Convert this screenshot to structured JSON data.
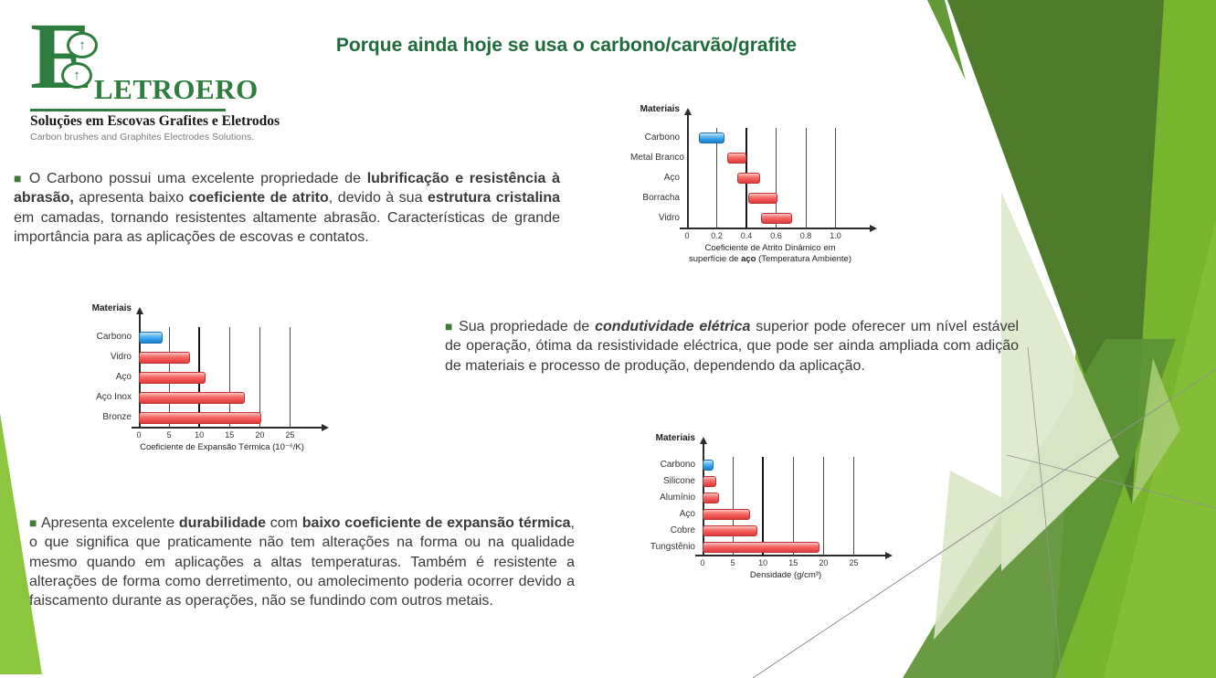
{
  "slide": {
    "title": "Porque ainda hoje se usa o carbono/carvão/grafite",
    "bullet": "■",
    "logo": {
      "brand_initial": "E",
      "brand_rest": "LETROERO",
      "arrow_glyph": "↑",
      "tagline_pt": "Soluções em Escovas Grafites e Eletrodos",
      "tagline_en": "Carbon brushes and Graphites Electrodes Solutions."
    },
    "paragraphs": [
      {
        "runs": [
          {
            "text": "O Carbono possui uma excelente propriedade de "
          },
          {
            "text": "lubrificação e resistência à abrasão,",
            "bold": true
          },
          {
            "text": " apresenta baixo "
          },
          {
            "text": "coeficiente de atrito",
            "bold": true
          },
          {
            "text": ", devido à sua "
          },
          {
            "text": "estrutura cristalina",
            "bold": true
          },
          {
            "text": " em camadas, tornando resistentes altamente abrasão. Características de grande importância para as aplicações de escovas e contatos."
          }
        ]
      },
      {
        "runs": [
          {
            "text": "Sua propriedade de "
          },
          {
            "text": "condutividade elétrica",
            "bold": true,
            "italic": true
          },
          {
            "text": " superior pode oferecer um nível estável de operação, ótima da resistividade eléctrica, que pode ser ainda ampliada com adição de materiais e processo de produção, dependendo da aplicação."
          }
        ]
      },
      {
        "runs": [
          {
            "text": "Apresenta excelente "
          },
          {
            "text": "durabilidade",
            "bold": true
          },
          {
            "text": " com "
          },
          {
            "text": "baixo coeficiente de expansão térmica",
            "bold": true
          },
          {
            "text": ", o que significa que praticamente não tem alterações na forma ou na qualidade mesmo quando em aplicações a altas temperaturas. Também é resistente a alterações de forma como derretimento, ou amolecimento poderia ocorrer devido a faiscamento durante as operações, não se fundindo com outros metais."
          }
        ]
      }
    ]
  },
  "chart_data": [
    {
      "type": "bar",
      "orientation": "horizontal",
      "y_axis_title": "Materiais",
      "categories": [
        "Carbono",
        "Metal Branco",
        "Aço",
        "Borracha",
        "Vidro"
      ],
      "bars": [
        {
          "label": "Carbono",
          "start": 0.08,
          "end": 0.25,
          "color": "blue"
        },
        {
          "label": "Metal Branco",
          "start": 0.27,
          "end": 0.4,
          "color": "red"
        },
        {
          "label": "Aço",
          "start": 0.34,
          "end": 0.49,
          "color": "red"
        },
        {
          "label": "Borracha",
          "start": 0.41,
          "end": 0.61,
          "color": "red"
        },
        {
          "label": "Vidro",
          "start": 0.5,
          "end": 0.71,
          "color": "red"
        }
      ],
      "xlim": [
        0,
        1.12
      ],
      "ticks": [
        0,
        0.2,
        0.4,
        0.6,
        0.8,
        1.0
      ],
      "tick_labels": [
        "0",
        "0.2",
        "0.4",
        "0.6",
        "0.8",
        "1.0"
      ],
      "strong_gridline": 0.4,
      "grid": "vertical",
      "xlabel_lines": [
        [
          {
            "text": "Coeficiente de Atrito Dinâmico em"
          }
        ],
        [
          {
            "text": "superfície de "
          },
          {
            "text": "aço",
            "bold": true
          },
          {
            "text": " (Temperatura Ambiente)"
          }
        ]
      ]
    },
    {
      "type": "bar",
      "orientation": "horizontal",
      "y_axis_title": "Materiais",
      "categories": [
        "Carbono",
        "Vidro",
        "Aço",
        "Aço Inox",
        "Bronze"
      ],
      "bars": [
        {
          "label": "Carbono",
          "start": 0,
          "end": 4.0,
          "color": "blue"
        },
        {
          "label": "Vidro",
          "start": 0,
          "end": 8.5,
          "color": "red"
        },
        {
          "label": "Aço",
          "start": 0,
          "end": 11.0,
          "color": "red"
        },
        {
          "label": "Aço Inox",
          "start": 0,
          "end": 17.5,
          "color": "red"
        },
        {
          "label": "Bronze",
          "start": 0,
          "end": 20.3,
          "color": "red"
        }
      ],
      "xlim": [
        0,
        27.5
      ],
      "ticks": [
        0,
        5,
        10,
        15,
        20,
        25
      ],
      "tick_labels": [
        "0",
        "5",
        "10",
        "15",
        "20",
        "25"
      ],
      "strong_gridline": 10,
      "grid": "vertical",
      "xlabel_lines": [
        [
          {
            "text": "Coeficiente de Expansão Térmica (10⁻⁶/K)"
          }
        ]
      ]
    },
    {
      "type": "bar",
      "orientation": "horizontal",
      "y_axis_title": "Materiais",
      "categories": [
        "Carbono",
        "Silicone",
        "Alumínio",
        "Aço",
        "Cobre",
        "Tungstênio"
      ],
      "bars": [
        {
          "label": "Carbono",
          "start": 0,
          "end": 1.8,
          "color": "blue"
        },
        {
          "label": "Silicone",
          "start": 0,
          "end": 2.3,
          "color": "red"
        },
        {
          "label": "Alumínio",
          "start": 0,
          "end": 2.7,
          "color": "red"
        },
        {
          "label": "Aço",
          "start": 0,
          "end": 7.9,
          "color": "red"
        },
        {
          "label": "Cobre",
          "start": 0,
          "end": 9.0,
          "color": "red"
        },
        {
          "label": "Tungstênio",
          "start": 0,
          "end": 19.3,
          "color": "red"
        }
      ],
      "xlim": [
        0,
        27.5
      ],
      "ticks": [
        0,
        5,
        10,
        15,
        20,
        25
      ],
      "tick_labels": [
        "0",
        "5",
        "10",
        "15",
        "20",
        "25"
      ],
      "strong_gridline": 10,
      "grid": "vertical",
      "xlabel_lines": [
        [
          {
            "text": "Densidade (g/cm³)"
          }
        ]
      ]
    }
  ],
  "colors": {
    "brand_green": "#2e7d3f",
    "title_green": "#1e6b3c",
    "text_dark": "#3a3a3a",
    "bullet_green": "#43783b",
    "accent_lime": "#8cc63e",
    "bar_blue": "#42a7ee",
    "bar_red": "#f15b5b"
  }
}
